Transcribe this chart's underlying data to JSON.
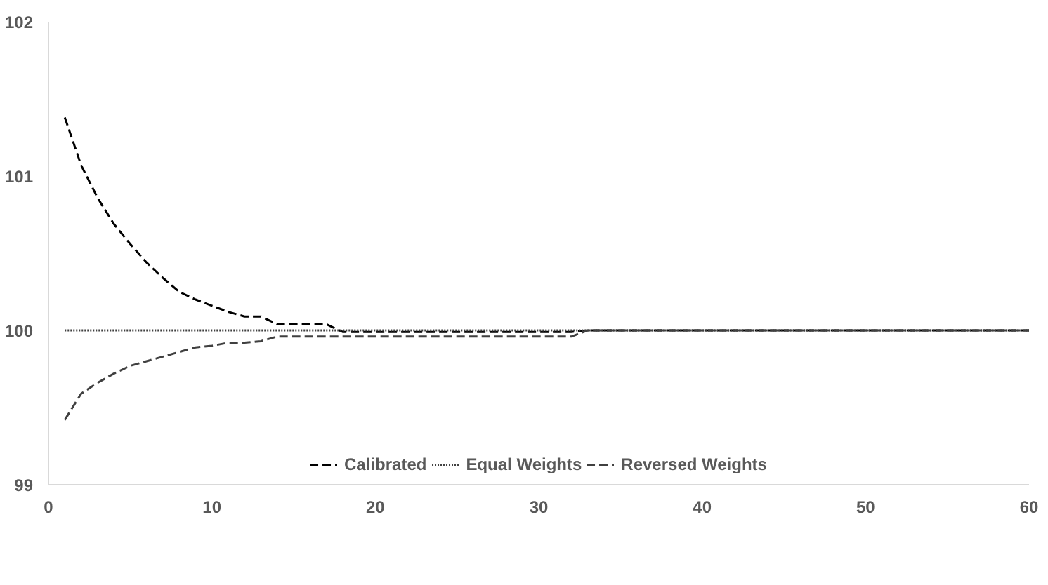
{
  "chart_data": {
    "type": "line",
    "x": [
      1,
      2,
      3,
      4,
      5,
      6,
      7,
      8,
      9,
      10,
      11,
      12,
      13,
      14,
      15,
      16,
      17,
      18,
      20,
      25,
      30,
      32,
      33,
      40,
      50,
      60
    ],
    "series": [
      {
        "name": "Calibrated",
        "color": "#000000",
        "line_style": "dashed",
        "values": [
          101.38,
          101.07,
          100.86,
          100.69,
          100.56,
          100.44,
          100.34,
          100.25,
          100.2,
          100.16,
          100.12,
          100.09,
          100.09,
          100.04,
          100.04,
          100.04,
          100.04,
          99.99,
          99.99,
          99.99,
          99.99,
          99.99,
          100,
          100,
          100,
          100
        ]
      },
      {
        "name": "Equal Weights",
        "color": "#404040",
        "line_style": "dotted",
        "values": [
          100,
          100,
          100,
          100,
          100,
          100,
          100,
          100,
          100,
          100,
          100,
          100,
          100,
          100,
          100,
          100,
          100,
          100,
          100,
          100,
          100,
          100,
          100,
          100,
          100,
          100
        ]
      },
      {
        "name": "Reversed Weights",
        "color": "#404040",
        "line_style": "dashed",
        "values": [
          99.42,
          99.59,
          99.66,
          99.72,
          99.77,
          99.8,
          99.83,
          99.86,
          99.89,
          99.9,
          99.92,
          99.92,
          99.93,
          99.96,
          99.96,
          99.96,
          99.96,
          99.96,
          99.96,
          99.96,
          99.96,
          99.96,
          100,
          100,
          100,
          100
        ]
      }
    ],
    "xlim": [
      0,
      60
    ],
    "xticks": [
      0,
      10,
      20,
      30,
      40,
      50,
      60
    ],
    "ylim": [
      99,
      102
    ],
    "yticks": [
      99,
      100,
      101,
      102
    ],
    "grid": false,
    "legend": "bottom",
    "marker": "none"
  }
}
